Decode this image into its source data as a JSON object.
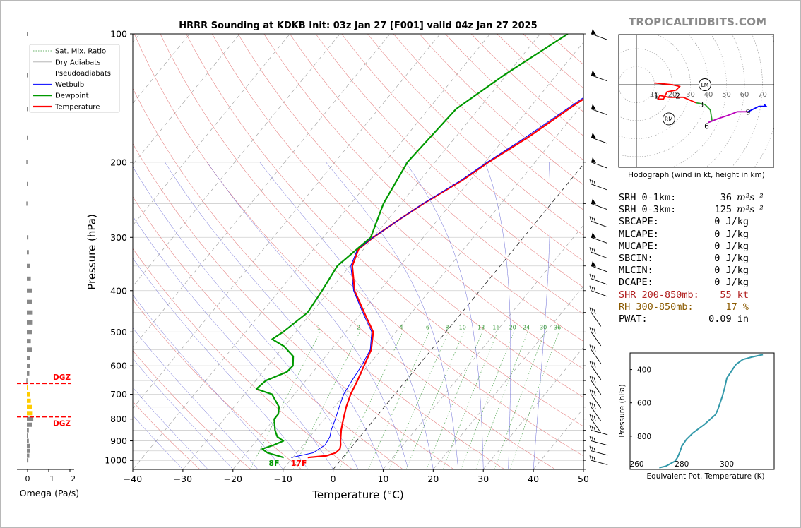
{
  "brand": "TROPICALTIDBITS.COM",
  "chart_data": [
    {
      "type": "line",
      "title": "HRRR Sounding at KDKB Init: 03z Jan 27 [F001] valid 04z Jan 27 2025",
      "xlabel": "Temperature (°C)",
      "ylabel": "Pressure (hPa)",
      "xlim": [
        -40,
        50
      ],
      "ylim": [
        1050,
        100
      ],
      "y_scale": "log",
      "x_ticks": [
        -40,
        -30,
        -20,
        -10,
        0,
        10,
        20,
        30,
        40,
        50
      ],
      "x_tick_labels": [
        "−40",
        "−30",
        "−20",
        "−10",
        "0",
        "10",
        "20",
        "30",
        "40",
        "50"
      ],
      "y_ticks": [
        1000,
        900,
        800,
        700,
        600,
        500,
        400,
        300,
        200,
        100
      ],
      "grid": true,
      "legend_position": "top-left",
      "legend": [
        "Sat. Mix. Ratio",
        "Dry Adiabats",
        "Pseudoadiabats",
        "Wetbulb",
        "Dewpoint",
        "Temperature"
      ],
      "mixing_ratio_labels": [
        "1",
        "2",
        "4",
        "6",
        "8",
        "10",
        "13",
        "16",
        "20",
        "24",
        "30",
        "36"
      ],
      "series": [
        {
          "name": "Temperature",
          "color": "#ff0000",
          "p": [
            985,
            975,
            960,
            940,
            920,
            900,
            850,
            800,
            750,
            700,
            650,
            600,
            550,
            500,
            450,
            400,
            350,
            320,
            300,
            270,
            250,
            220,
            200,
            175,
            150,
            125,
            100
          ],
          "t": [
            -7,
            -3.5,
            -2.2,
            -2.0,
            -2.5,
            -3.2,
            -4.8,
            -6.2,
            -7.6,
            -8.8,
            -9.7,
            -10.8,
            -12.0,
            -14.5,
            -19.5,
            -25.0,
            -29.5,
            -31.0,
            -30.0,
            -27.5,
            -25.5,
            -21.5,
            -19.3,
            -15.5,
            -12.0,
            -7.5,
            -3.7
          ]
        },
        {
          "name": "Wetbulb",
          "color": "#0000ff",
          "p": [
            985,
            960,
            920,
            880,
            850,
            800,
            750,
            700,
            650,
            600,
            550,
            500,
            450,
            400,
            350,
            320,
            300,
            270,
            250,
            220,
            200,
            175,
            150,
            125,
            100
          ],
          "t": [
            -10.3,
            -6.7,
            -5.6,
            -6.0,
            -6.8,
            -7.8,
            -9.0,
            -10.2,
            -10.8,
            -11.3,
            -12.2,
            -14.8,
            -19.8,
            -25.2,
            -29.8,
            -31.2,
            -30.0,
            -27.5,
            -25.6,
            -21.8,
            -19.6,
            -16.0,
            -12.4,
            -8.0,
            -4.3
          ]
        },
        {
          "name": "Dewpoint",
          "color": "#009900",
          "p": [
            985,
            960,
            940,
            920,
            900,
            880,
            850,
            800,
            780,
            750,
            700,
            680,
            650,
            620,
            600,
            570,
            540,
            520,
            500,
            450,
            400,
            350,
            300,
            250,
            200,
            150,
            125,
            100
          ],
          "t": [
            -11.8,
            -15.8,
            -17.5,
            -15.8,
            -14.6,
            -16.5,
            -18.0,
            -20.0,
            -20.0,
            -21.0,
            -24.5,
            -28.5,
            -28.0,
            -25.2,
            -25.0,
            -26.5,
            -30.0,
            -33.5,
            -32.5,
            -30.8,
            -31.5,
            -32.5,
            -30.5,
            -33.5,
            -35.5,
            -34.5,
            -30.5,
            -24.5
          ]
        }
      ],
      "surface_labels": {
        "dewpoint": "8F",
        "temperature": "17F"
      },
      "wind_barbs_p": [
        1000,
        950,
        900,
        850,
        800,
        750,
        700,
        650,
        600,
        550,
        500,
        450,
        400,
        375,
        350,
        325,
        300,
        275,
        250,
        225,
        200,
        175,
        150,
        125,
        100
      ]
    },
    {
      "type": "bar",
      "title": "",
      "xlabel": "Omega (Pa/s)",
      "xlim": [
        0.2,
        -2.2
      ],
      "x_ticks": [
        0,
        -1,
        -2
      ],
      "x_tick_labels": [
        "0",
        "−1",
        "−2"
      ],
      "dgz_label": "DGZ",
      "dgz_top_p": 660,
      "dgz_bottom_p": 790,
      "series": [
        {
          "name": "",
          "p": [
            1000,
            975,
            950,
            925,
            900,
            875,
            850,
            825,
            800,
            775,
            750,
            725,
            700,
            675,
            650,
            625,
            600,
            575,
            550,
            525,
            500,
            475,
            450,
            425,
            400,
            375,
            350,
            325,
            300,
            250,
            225,
            200,
            175,
            150,
            125,
            100
          ],
          "omega": [
            -0.15,
            -0.25,
            -0.3,
            -0.35,
            -0.2,
            -0.1,
            -0.2,
            -0.5,
            -0.65,
            -0.6,
            -0.55,
            -0.4,
            -0.3,
            -0.1,
            0.05,
            -0.25,
            -0.3,
            -0.35,
            -0.5,
            -0.4,
            -0.5,
            -0.6,
            -0.6,
            -0.55,
            -0.5,
            -0.4,
            -0.3,
            -0.2,
            -0.15,
            0.05,
            -0.05,
            0.05,
            -0.1,
            -0.05,
            -0.08,
            -0.1
          ]
        }
      ]
    },
    {
      "type": "line",
      "title": "",
      "xlabel": "Hodograph (wind in kt, height in km)",
      "ring_labels": [
        "10",
        "20",
        "30",
        "40",
        "50",
        "60",
        "70"
      ],
      "markers": [
        "LM",
        "RM"
      ],
      "markers_uv": [
        [
          38,
          0
        ],
        [
          18,
          -19
        ]
      ],
      "height_labels": [
        "1",
        "2",
        "3",
        "6",
        "9"
      ],
      "height_labels_uv": [
        [
          11,
          -6
        ],
        [
          23,
          -6
        ],
        [
          36,
          -11
        ],
        [
          39,
          -23
        ],
        [
          62,
          -15
        ]
      ],
      "segments": [
        {
          "name": "0-3km",
          "color": "#ff0000",
          "uv": [
            [
              10,
              1
            ],
            [
              20,
              0
            ],
            [
              24,
              -1
            ],
            [
              23,
              -2
            ],
            [
              22,
              -3
            ],
            [
              17,
              -4
            ],
            [
              15,
              -8
            ],
            [
              12,
              -8
            ],
            [
              13,
              -6
            ],
            [
              18,
              -7
            ],
            [
              26,
              -7
            ],
            [
              33,
              -10
            ]
          ]
        },
        {
          "name": "3-6km",
          "color": "#2ca02c",
          "uv": [
            [
              33,
              -10
            ],
            [
              38,
              -11
            ],
            [
              41,
              -14
            ],
            [
              42,
              -20
            ],
            [
              40,
              -21
            ]
          ]
        },
        {
          "name": "6-9km",
          "color": "#bb00bb",
          "uv": [
            [
              40,
              -21
            ],
            [
              45,
              -19
            ],
            [
              51,
              -17
            ],
            [
              56,
              -15
            ],
            [
              62,
              -15
            ]
          ]
        },
        {
          "name": "9+km",
          "color": "#0000ff",
          "uv": [
            [
              62,
              -15
            ],
            [
              64,
              -14
            ],
            [
              68,
              -12
            ],
            [
              72,
              -12
            ],
            [
              71,
              -11
            ]
          ]
        }
      ]
    },
    {
      "type": "line",
      "title": "",
      "xlabel": "Equivalent Pot. Temperature (K)",
      "ylabel": "Pressure (hPa)",
      "x_ticks": [
        260,
        280,
        300
      ],
      "y_ticks": [
        400,
        600,
        800
      ],
      "xlim": [
        257,
        321
      ],
      "ylim": [
        1000,
        300
      ],
      "series": [
        {
          "name": "",
          "color": "#3399aa",
          "x": [
            270,
            273,
            277,
            278,
            279,
            280,
            282,
            285,
            290,
            295,
            296,
            297,
            298,
            299,
            300,
            302,
            304,
            307,
            311,
            316
          ],
          "p": [
            990,
            980,
            950,
            930,
            900,
            860,
            820,
            780,
            730,
            670,
            640,
            600,
            560,
            510,
            450,
            410,
            370,
            340,
            325,
            310
          ]
        }
      ]
    }
  ],
  "stats": [
    {
      "label": "SRH 0-1km:",
      "value": "36",
      "unit": "m²s⁻²",
      "color": "#000000"
    },
    {
      "label": "SRH 0-3km:",
      "value": "125",
      "unit": "m²s⁻²",
      "color": "#000000"
    },
    {
      "label": "SBCAPE:",
      "value": "0 J/kg",
      "unit": "",
      "color": "#000000"
    },
    {
      "label": "MLCAPE:",
      "value": "0 J/kg",
      "unit": "",
      "color": "#000000"
    },
    {
      "label": "MUCAPE:",
      "value": "0 J/kg",
      "unit": "",
      "color": "#000000"
    },
    {
      "label": "SBCIN:",
      "value": "0 J/kg",
      "unit": "",
      "color": "#000000"
    },
    {
      "label": "MLCIN:",
      "value": "0 J/kg",
      "unit": "",
      "color": "#000000"
    },
    {
      "label": "DCAPE:",
      "value": "0 J/kg",
      "unit": "",
      "color": "#000000"
    },
    {
      "label": "SHR 200-850mb:",
      "value": "55 kt",
      "unit": "",
      "color": "#b22222"
    },
    {
      "label": "RH 300-850mb:",
      "value": "17 %",
      "unit": "",
      "color": "#8b5a00"
    },
    {
      "label": "PWAT:",
      "value": "0.09 in",
      "unit": "",
      "color": "#000000"
    }
  ]
}
